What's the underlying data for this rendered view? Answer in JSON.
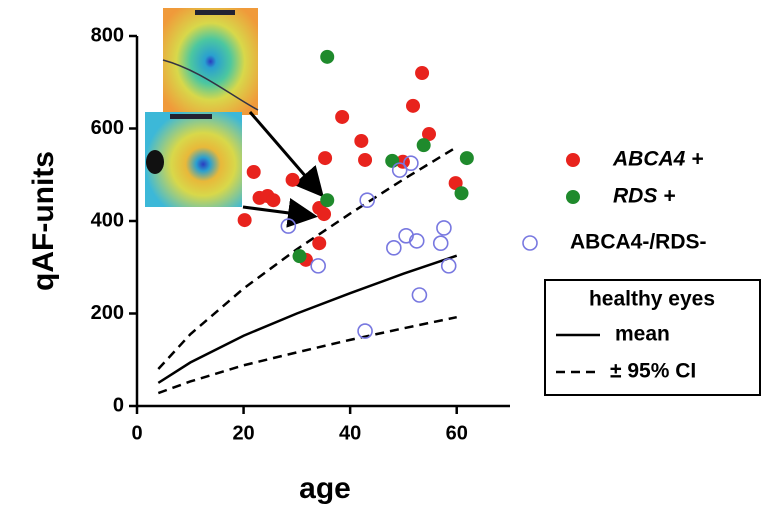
{
  "chart_data": {
    "type": "scatter",
    "xlabel": "age",
    "ylabel": "qAF-units",
    "xlim": [
      0,
      70
    ],
    "ylim": [
      0,
      800
    ],
    "xticks": [
      0,
      20,
      40,
      60
    ],
    "yticks": [
      0,
      200,
      400,
      600,
      800
    ],
    "series": [
      {
        "name": "ABCA4 +",
        "color": "#e8231d",
        "marker": "filled",
        "italic": true,
        "x": [
          20.2,
          21.9,
          23,
          24.5,
          25.6,
          29.2,
          31.7,
          34.2,
          34.2,
          35.1,
          35.3,
          38.5,
          42.1,
          42.8,
          49.9,
          51.8,
          53.5,
          54.8,
          59.8
        ],
        "y": [
          402,
          506,
          450,
          454,
          445,
          489,
          316,
          352,
          428,
          415,
          536,
          625,
          573,
          532,
          528,
          649,
          720,
          588,
          482
        ]
      },
      {
        "name": "RDS +",
        "color": "#1f8a2c",
        "marker": "filled",
        "italic": true,
        "x": [
          35.7,
          35.7,
          30.5,
          47.9,
          53.8,
          61.9,
          60.9
        ],
        "y": [
          755,
          445,
          324,
          530,
          564,
          536,
          460
        ]
      },
      {
        "name": "ABCA4-/RDS-",
        "color": "#7878e0",
        "marker": "open",
        "italic": false,
        "x": [
          28.4,
          34,
          43.2,
          42.8,
          48.2,
          49.3,
          50.5,
          51.4,
          52.5,
          53,
          57,
          57.6,
          58.5
        ],
        "y": [
          389,
          303,
          445,
          162,
          342,
          510,
          368,
          525,
          357,
          240,
          352,
          385,
          303
        ]
      }
    ],
    "curve_legend_title": "healthy eyes",
    "mean_curve": {
      "name": "mean",
      "color": "#000000",
      "x": [
        4,
        10,
        20,
        30,
        40,
        50,
        60
      ],
      "y": [
        50,
        94,
        152,
        200,
        244,
        286,
        325
      ]
    },
    "ci_curves": {
      "name": "± 95% CI",
      "color": "#000000",
      "x": [
        4,
        10,
        20,
        30,
        40,
        50,
        60
      ],
      "upper": [
        80,
        155,
        254,
        339,
        416,
        490,
        560
      ],
      "lower": [
        28,
        53,
        88,
        116,
        143,
        168,
        192
      ]
    }
  }
}
